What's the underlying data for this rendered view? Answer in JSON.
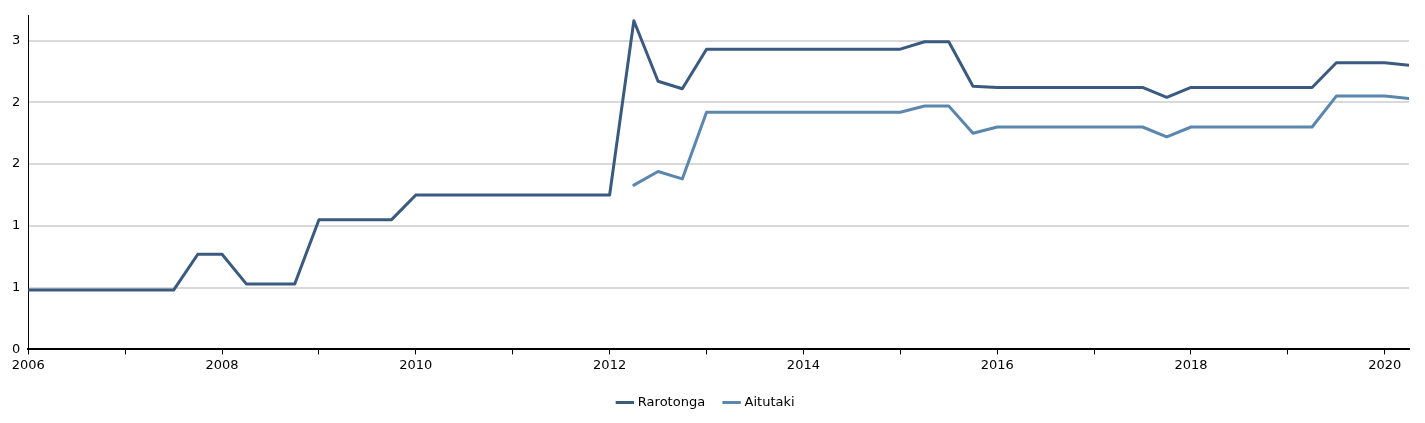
{
  "chart_data": {
    "type": "line",
    "xlim": [
      2006,
      2020.25
    ],
    "xticks": [
      2006,
      {
        "value": 2007,
        "label": null
      },
      2008,
      {
        "value": 2009,
        "label": null
      },
      2010,
      {
        "value": 2011,
        "label": null
      },
      2012,
      {
        "value": 2013,
        "label": null
      },
      2014,
      {
        "value": 2015,
        "label": null
      },
      2016,
      {
        "value": 2017,
        "label": null
      },
      2018,
      {
        "value": 2019,
        "label": null
      },
      2020
    ],
    "ylim": [
      0,
      2.7
    ],
    "yticks": [
      {
        "value": 0,
        "label": "0"
      },
      {
        "value": 0.5,
        "label": "1"
      },
      {
        "value": 1,
        "label": "1"
      },
      {
        "value": 1.5,
        "label": "2"
      },
      {
        "value": 2,
        "label": "2"
      },
      {
        "value": 2.5,
        "label": "3"
      }
    ],
    "grid": "y",
    "legend": "bottom",
    "marker": "none",
    "line_style": "solid",
    "series": [
      {
        "name": "Rarotonga",
        "color": "#3b5a80",
        "x": [
          2006,
          2006.25,
          2006.5,
          2006.75,
          2007,
          2007.25,
          2007.5,
          2007.75,
          2008,
          2008.25,
          2008.5,
          2008.75,
          2009,
          2009.25,
          2009.5,
          2009.75,
          2010,
          2010.25,
          2010.5,
          2010.75,
          2011,
          2011.25,
          2011.5,
          2011.75,
          2012,
          2012.25,
          2012.5,
          2012.75,
          2013,
          2013.25,
          2013.5,
          2013.75,
          2014,
          2014.25,
          2014.5,
          2014.75,
          2015,
          2015.25,
          2015.5,
          2015.75,
          2016,
          2016.25,
          2016.5,
          2016.75,
          2017,
          2017.25,
          2017.5,
          2017.75,
          2018,
          2018.25,
          2018.5,
          2018.75,
          2019,
          2019.25,
          2019.5,
          2019.75,
          2020,
          2020.25
        ],
        "values": [
          0.48,
          0.48,
          0.48,
          0.48,
          0.48,
          0.48,
          0.48,
          0.77,
          0.77,
          0.53,
          0.53,
          0.53,
          1.05,
          1.05,
          1.05,
          1.05,
          1.25,
          1.25,
          1.25,
          1.25,
          1.25,
          1.25,
          1.25,
          1.25,
          1.25,
          2.66,
          2.17,
          2.11,
          2.43,
          2.43,
          2.43,
          2.43,
          2.43,
          2.43,
          2.43,
          2.43,
          2.43,
          2.49,
          2.49,
          2.13,
          2.12,
          2.12,
          2.12,
          2.12,
          2.12,
          2.12,
          2.12,
          2.04,
          2.12,
          2.12,
          2.12,
          2.12,
          2.12,
          2.12,
          2.32,
          2.32,
          2.32,
          2.3
        ]
      },
      {
        "name": "Aitutaki",
        "color": "#5b87ad",
        "x": [
          2012.25,
          2012.5,
          2012.75,
          2013,
          2013.25,
          2013.5,
          2013.75,
          2014,
          2014.25,
          2014.5,
          2014.75,
          2015,
          2015.25,
          2015.5,
          2015.75,
          2016,
          2016.25,
          2016.5,
          2016.75,
          2017,
          2017.25,
          2017.5,
          2017.75,
          2018,
          2018.25,
          2018.5,
          2018.75,
          2019,
          2019.25,
          2019.5,
          2019.75,
          2020,
          2020.25
        ],
        "values": [
          1.33,
          1.44,
          1.38,
          1.92,
          1.92,
          1.92,
          1.92,
          1.92,
          1.92,
          1.92,
          1.92,
          1.92,
          1.97,
          1.97,
          1.75,
          1.8,
          1.8,
          1.8,
          1.8,
          1.8,
          1.8,
          1.8,
          1.72,
          1.8,
          1.8,
          1.8,
          1.8,
          1.8,
          1.8,
          2.05,
          2.05,
          2.05,
          2.03
        ]
      }
    ]
  }
}
